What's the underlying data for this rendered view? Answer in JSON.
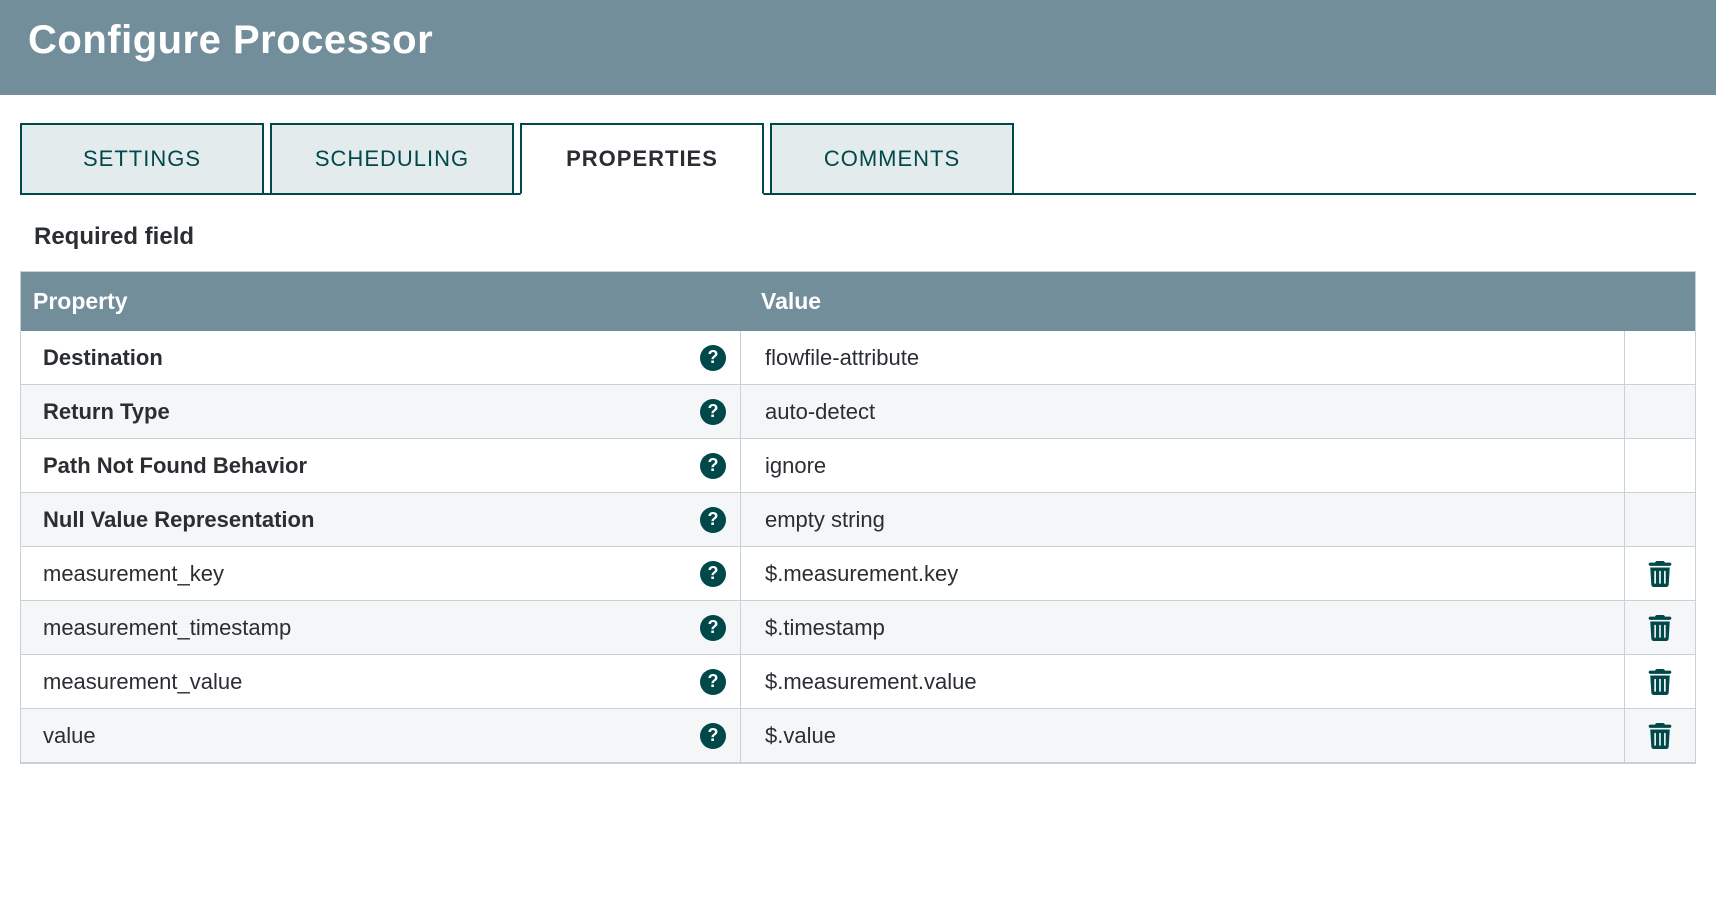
{
  "header": {
    "title": "Configure Processor"
  },
  "tabs": [
    {
      "label": "SETTINGS",
      "active": false
    },
    {
      "label": "SCHEDULING",
      "active": false
    },
    {
      "label": "PROPERTIES",
      "active": true
    },
    {
      "label": "COMMENTS",
      "active": false
    }
  ],
  "section_label": "Required field",
  "table": {
    "columns": {
      "property": "Property",
      "value": "Value"
    },
    "rows": [
      {
        "name": "Destination",
        "value": "flowfile-attribute",
        "required": true,
        "deletable": false
      },
      {
        "name": "Return Type",
        "value": "auto-detect",
        "required": true,
        "deletable": false
      },
      {
        "name": "Path Not Found Behavior",
        "value": "ignore",
        "required": true,
        "deletable": false
      },
      {
        "name": "Null Value Representation",
        "value": "empty string",
        "required": true,
        "deletable": false
      },
      {
        "name": "measurement_key",
        "value": "$.measurement.key",
        "required": false,
        "deletable": true
      },
      {
        "name": "measurement_timestamp",
        "value": "$.timestamp",
        "required": false,
        "deletable": true
      },
      {
        "name": "measurement_value",
        "value": "$.measurement.value",
        "required": false,
        "deletable": true
      },
      {
        "name": "value",
        "value": "$.value",
        "required": false,
        "deletable": true
      }
    ]
  },
  "colors": {
    "header_bg": "#728e9b",
    "accent": "#004849",
    "tab_bg": "#e4ebed",
    "row_alt": "#f4f6f7",
    "border": "#c7d2d7",
    "text": "#2a2e33"
  }
}
